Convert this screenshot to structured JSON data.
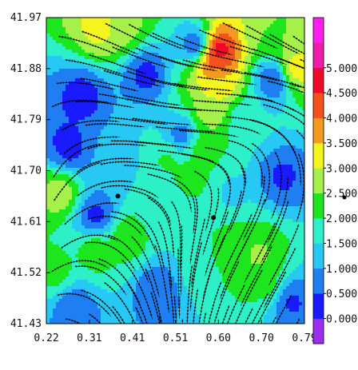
{
  "chart_data": {
    "type": "heatmap",
    "subtype": "filled contour with streamlines",
    "xlim": [
      0.22,
      0.79
    ],
    "ylim": [
      41.43,
      41.97
    ],
    "xticks": [
      "0.22",
      "0.31",
      "0.41",
      "0.51",
      "0.60",
      "0.70",
      "0.79"
    ],
    "yticks": [
      "41.43",
      "41.52",
      "41.61",
      "41.70",
      "41.79",
      "41.88",
      "41.97"
    ],
    "colorbar": {
      "levels": [
        {
          "min": -0.5,
          "max": 0.0,
          "color": "#9a2ef0"
        },
        {
          "min": 0.0,
          "max": 0.5,
          "color": "#1a1aff"
        },
        {
          "min": 0.5,
          "max": 1.0,
          "color": "#1e7ef2"
        },
        {
          "min": 1.0,
          "max": 1.5,
          "color": "#28c8f5"
        },
        {
          "min": 1.5,
          "max": 2.0,
          "color": "#2ef0c8"
        },
        {
          "min": 2.0,
          "max": 2.5,
          "color": "#1ee61e"
        },
        {
          "min": 2.5,
          "max": 3.0,
          "color": "#a6f04a"
        },
        {
          "min": 3.0,
          "max": 3.5,
          "color": "#f4f41e"
        },
        {
          "min": 3.5,
          "max": 4.0,
          "color": "#f49a1e"
        },
        {
          "min": 4.0,
          "max": 4.5,
          "color": "#f5501e"
        },
        {
          "min": 4.5,
          "max": 5.0,
          "color": "#ee0a28"
        },
        {
          "min": 5.0,
          "max": 5.5,
          "color": "#f01ea6"
        },
        {
          "min": 5.5,
          "max": 6.0,
          "color": "#ff1ef0"
        }
      ],
      "tick_labels": [
        "0.000",
        "0.500",
        "1.000",
        "1.500",
        "2.000",
        "2.500",
        "3.000",
        "3.500",
        "4.000",
        "4.500",
        "5.000"
      ]
    },
    "markers": [
      {
        "x": 0.378,
        "y": 41.655
      },
      {
        "x": 0.589,
        "y": 41.617
      }
    ],
    "field_features": [
      {
        "x": 0.3,
        "y": 41.83,
        "value": 0.3
      },
      {
        "x": 0.27,
        "y": 41.74,
        "value": 0.3
      },
      {
        "x": 0.33,
        "y": 41.62,
        "value": 0.3
      },
      {
        "x": 0.44,
        "y": 41.87,
        "value": 0.3
      },
      {
        "x": 0.55,
        "y": 41.92,
        "value": 0.4
      },
      {
        "x": 0.72,
        "y": 41.86,
        "value": 0.4
      },
      {
        "x": 0.74,
        "y": 41.69,
        "value": 0.4
      },
      {
        "x": 0.52,
        "y": 41.76,
        "value": 0.6
      },
      {
        "x": 0.47,
        "y": 41.49,
        "value": 0.5
      },
      {
        "x": 0.28,
        "y": 41.46,
        "value": 0.6
      },
      {
        "x": 0.76,
        "y": 41.47,
        "value": 0.4
      },
      {
        "x": 0.59,
        "y": 41.89,
        "value": 4.2
      },
      {
        "x": 0.6,
        "y": 41.91,
        "value": 5.0
      },
      {
        "x": 0.6,
        "y": 41.85,
        "value": 3.3
      },
      {
        "x": 0.58,
        "y": 41.8,
        "value": 2.8
      },
      {
        "x": 0.56,
        "y": 41.74,
        "value": 2.3
      },
      {
        "x": 0.54,
        "y": 41.69,
        "value": 2.2
      },
      {
        "x": 0.49,
        "y": 41.72,
        "value": 2.1
      },
      {
        "x": 0.34,
        "y": 41.95,
        "value": 3.2
      },
      {
        "x": 0.39,
        "y": 41.95,
        "value": 2.7
      },
      {
        "x": 0.71,
        "y": 41.94,
        "value": 2.5
      },
      {
        "x": 0.77,
        "y": 41.88,
        "value": 3.3
      },
      {
        "x": 0.25,
        "y": 41.66,
        "value": 2.8
      },
      {
        "x": 0.4,
        "y": 41.585,
        "value": 2.4
      },
      {
        "x": 0.33,
        "y": 41.56,
        "value": 2.3
      },
      {
        "x": 0.64,
        "y": 41.56,
        "value": 2.4
      },
      {
        "x": 0.69,
        "y": 41.55,
        "value": 2.6
      },
      {
        "x": 0.71,
        "y": 41.5,
        "value": 2.2
      },
      {
        "x": 0.55,
        "y": 41.52,
        "value": 1.7
      },
      {
        "x": 0.24,
        "y": 41.52,
        "value": 2.2
      },
      {
        "x": 0.63,
        "y": 41.66,
        "value": 1.4
      },
      {
        "x": 0.38,
        "y": 41.72,
        "value": 1.3
      },
      {
        "x": 0.47,
        "y": 41.64,
        "value": 1.5
      },
      {
        "x": 0.66,
        "y": 41.79,
        "value": 1.5
      }
    ]
  }
}
